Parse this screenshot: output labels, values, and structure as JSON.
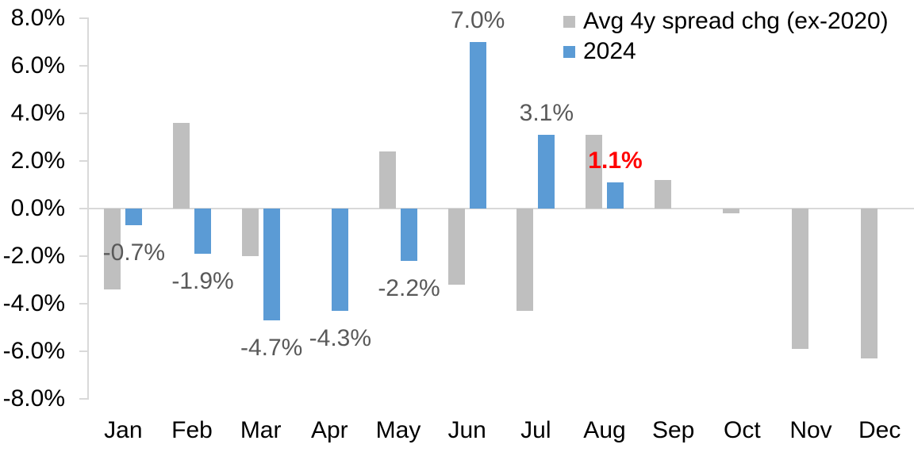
{
  "chart_data": {
    "type": "bar",
    "title": "",
    "categories": [
      "Jan",
      "Feb",
      "Mar",
      "Apr",
      "May",
      "Jun",
      "Jul",
      "Aug",
      "Sep",
      "Oct",
      "Nov",
      "Dec"
    ],
    "series": [
      {
        "name": "Avg 4y spread chg (ex-2020)",
        "color": "#bfbfbf",
        "values": [
          -3.4,
          3.6,
          -2.0,
          0.0,
          2.4,
          -3.2,
          -4.3,
          3.1,
          1.2,
          -0.2,
          -5.9,
          -6.3
        ]
      },
      {
        "name": "2024",
        "color": "#5b9bd5",
        "values": [
          -0.7,
          -1.9,
          -4.7,
          -4.3,
          -2.2,
          7.0,
          3.1,
          1.1,
          null,
          null,
          null,
          null
        ]
      }
    ],
    "data_labels": [
      {
        "text": "-0.7%",
        "month": 0,
        "series": 1,
        "color": "#595959",
        "bold": false
      },
      {
        "text": "-1.9%",
        "month": 1,
        "series": 1,
        "color": "#595959",
        "bold": false
      },
      {
        "text": "-4.7%",
        "month": 2,
        "series": 1,
        "color": "#595959",
        "bold": false
      },
      {
        "text": "-4.3%",
        "month": 3,
        "series": 1,
        "color": "#595959",
        "bold": false
      },
      {
        "text": "-2.2%",
        "month": 4,
        "series": 1,
        "color": "#595959",
        "bold": false
      },
      {
        "text": "7.0%",
        "month": 5,
        "series": 1,
        "color": "#595959",
        "bold": false
      },
      {
        "text": "3.1%",
        "month": 6,
        "series": 1,
        "color": "#595959",
        "bold": false
      },
      {
        "text": "1.1%",
        "month": 7,
        "series": 1,
        "color": "#ff0000",
        "bold": true
      }
    ],
    "y_axis": {
      "min": -8,
      "max": 8,
      "step": 2,
      "tick_labels": [
        "8.0%",
        "6.0%",
        "4.0%",
        "2.0%",
        "0.0%",
        "-2.0%",
        "-4.0%",
        "-6.0%",
        "-8.0%"
      ]
    },
    "xlabel": "",
    "ylabel": "",
    "grid": false,
    "legend": {
      "position": "top-right"
    },
    "colors": {
      "axis": "#d9d9d9",
      "data_label_default": "#595959",
      "data_label_highlight": "#ff0000",
      "tick_text": "#000000",
      "background": "#ffffff"
    }
  }
}
